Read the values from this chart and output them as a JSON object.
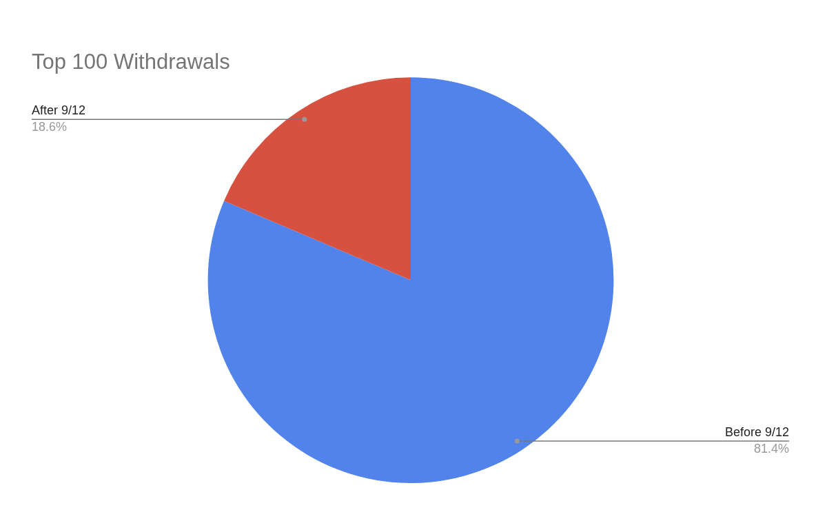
{
  "chart_data": {
    "type": "pie",
    "title": "Top 100 Withdrawals",
    "categories": [
      "Before 9/12",
      "After 9/12"
    ],
    "values": [
      81.4,
      18.6
    ],
    "colors": [
      "#5183ea",
      "#d75140"
    ],
    "value_labels": [
      "81.4%",
      "18.6%"
    ],
    "legend": false
  }
}
